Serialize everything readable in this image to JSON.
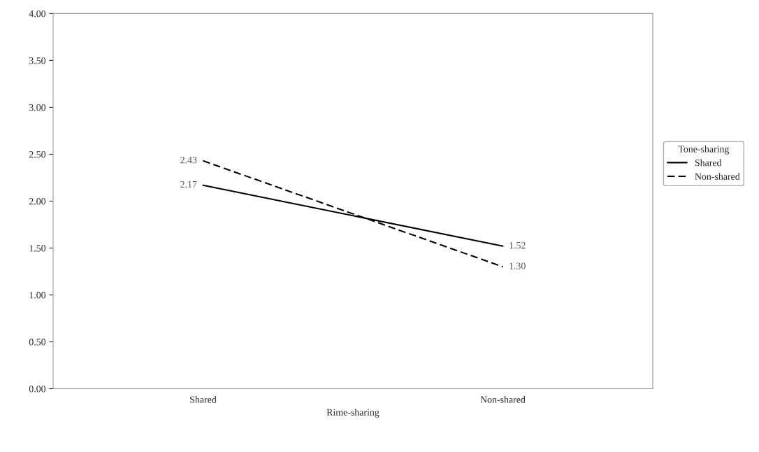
{
  "chart_data": {
    "type": "line",
    "xlabel": "Rime-sharing",
    "legend_title": "Tone-sharing",
    "categories": [
      "Shared",
      "Non-shared"
    ],
    "series": [
      {
        "name": "Shared",
        "color": "#000000",
        "values": [
          2.17,
          1.52
        ],
        "value_labels": [
          "2.17",
          "1.52"
        ],
        "line_style": "solid"
      },
      {
        "name": "Non-shared",
        "color": "#000000",
        "values": [
          2.43,
          1.3
        ],
        "value_labels": [
          "2.43",
          "1.30"
        ],
        "line_style": "dashed"
      }
    ],
    "ylim": [
      0,
      4
    ],
    "yticks": [
      {
        "value": 0,
        "label": "0.00"
      },
      {
        "value": 0.5,
        "label": "0.50"
      },
      {
        "value": 1,
        "label": "1.00"
      },
      {
        "value": 1.5,
        "label": "1.50"
      },
      {
        "value": 2,
        "label": "2.00"
      },
      {
        "value": 2.5,
        "label": "2.50"
      },
      {
        "value": 3,
        "label": "3.00"
      },
      {
        "value": 3.5,
        "label": "3.50"
      },
      {
        "value": 4,
        "label": "4.00"
      }
    ],
    "legend": "right",
    "grid": false,
    "marker": "none"
  }
}
